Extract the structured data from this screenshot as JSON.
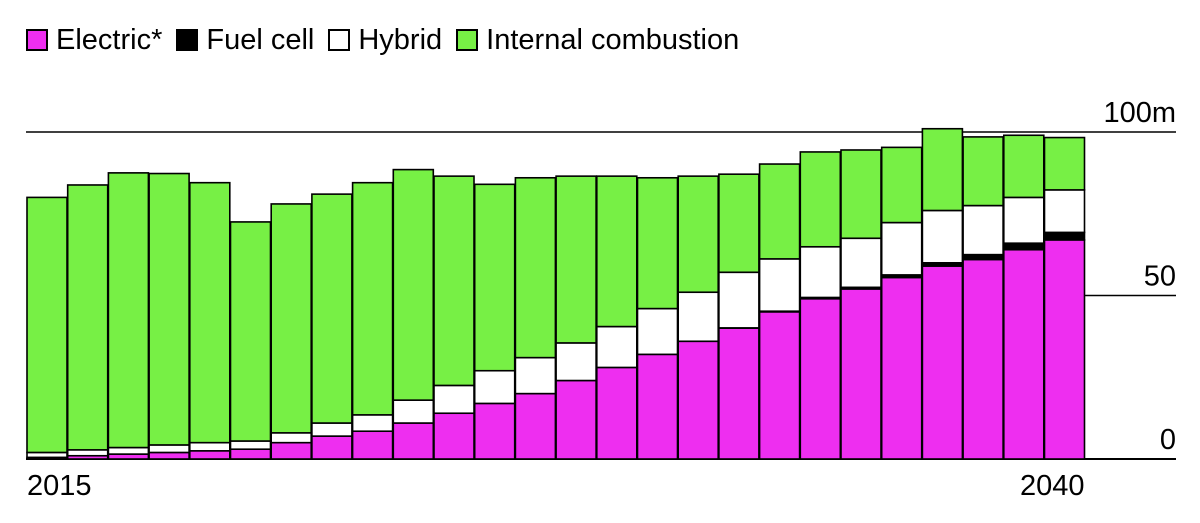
{
  "chart_data": {
    "type": "bar",
    "stacked": true,
    "categories": [
      "2015",
      "2016",
      "2017",
      "2018",
      "2019",
      "2020",
      "2021",
      "2022",
      "2023",
      "2024",
      "2025",
      "2026",
      "2027",
      "2028",
      "2029",
      "2030",
      "2031",
      "2032",
      "2033",
      "2034",
      "2035",
      "2036",
      "2037",
      "2038",
      "2039",
      "2040"
    ],
    "series": [
      {
        "name": "Electric*",
        "color": "#ee2ef0",
        "values": [
          0.5,
          1,
          1.5,
          2,
          2.5,
          3,
          5,
          7,
          8.5,
          11,
          14,
          17,
          20,
          24,
          28,
          32,
          36,
          40,
          45,
          49,
          52,
          55.5,
          59,
          61,
          64,
          67
        ]
      },
      {
        "name": "Fuel cell",
        "color": "#000000",
        "values": [
          0,
          0,
          0,
          0,
          0,
          0,
          0,
          0,
          0,
          0,
          0,
          0,
          0,
          0,
          0,
          0,
          0,
          0.1,
          0.2,
          0.4,
          0.5,
          0.8,
          1,
          1.5,
          2,
          2.3
        ]
      },
      {
        "name": "Hybrid",
        "color": "#ffffff",
        "values": [
          1.5,
          1.8,
          2,
          2.3,
          2.5,
          2.5,
          3,
          4,
          5,
          7,
          8.5,
          10,
          11,
          11.5,
          12.5,
          14,
          15,
          17,
          16,
          15.5,
          15,
          16,
          16,
          15,
          14,
          13
        ]
      },
      {
        "name": "Internal combustion",
        "color": "#77f045",
        "values": [
          78,
          81,
          84,
          83,
          79.5,
          67,
          70,
          70,
          71,
          70.5,
          64,
          57,
          55,
          51,
          46,
          40,
          35.5,
          30,
          29,
          29,
          27,
          23,
          25,
          21,
          19,
          16
        ]
      }
    ],
    "title": "",
    "xlabel": "",
    "ylabel": "",
    "ylim": [
      0,
      100
    ],
    "y_tick_labels": [
      {
        "value": 0,
        "label": "0"
      },
      {
        "value": 50,
        "label": "50"
      },
      {
        "value": 100,
        "label": "100m"
      }
    ],
    "x_tick_labels": [
      {
        "category": "2015",
        "label": "2015"
      },
      {
        "category": "2040",
        "label": "2040"
      }
    ],
    "grid": true,
    "legend_position": "top-left"
  }
}
